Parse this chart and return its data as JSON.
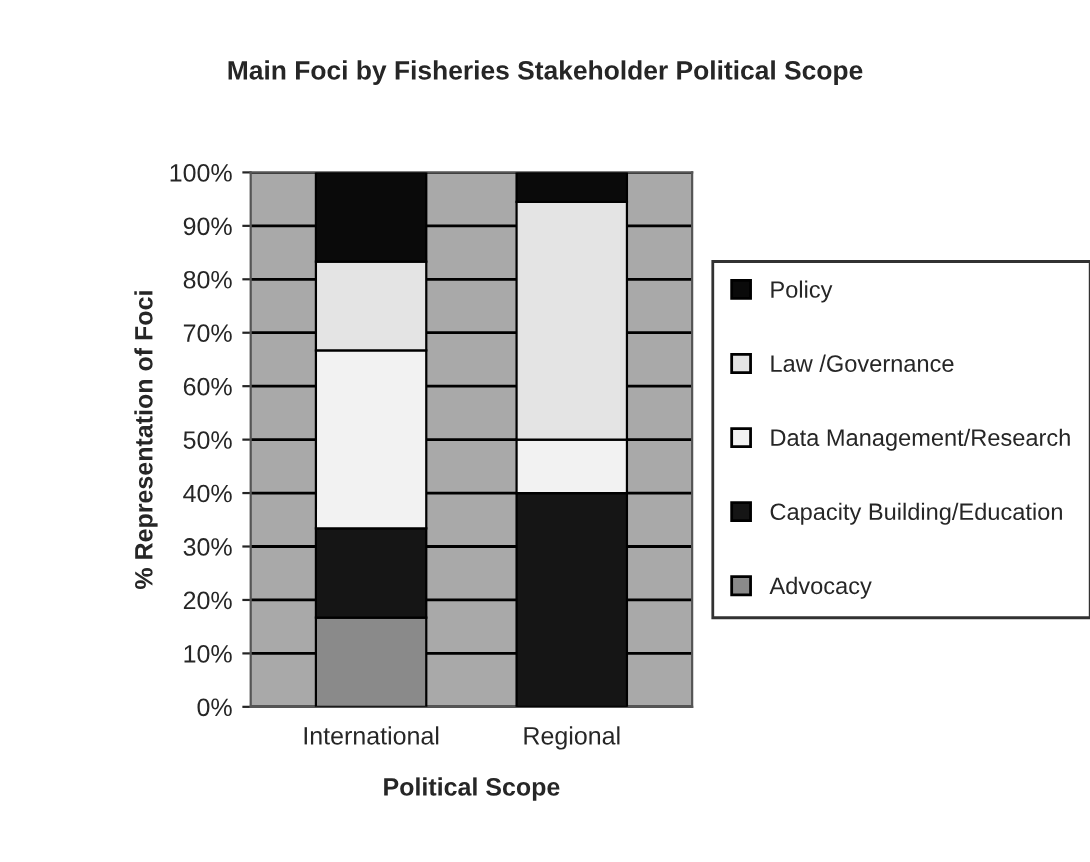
{
  "chart_data": {
    "type": "bar",
    "stacked": true,
    "title": "Main Foci by Fisheries Stakeholder Political Scope",
    "xlabel": "Political Scope",
    "ylabel": "% Representation of Foci",
    "categories": [
      "International",
      "Regional"
    ],
    "series": [
      {
        "name": "Advocacy",
        "color": "#8a8a8a",
        "values": [
          16.7,
          0
        ]
      },
      {
        "name": "Capacity Building/Education",
        "color": "#151515",
        "values": [
          16.7,
          40
        ]
      },
      {
        "name": "Data Management/Research",
        "color": "#f2f2f2",
        "values": [
          33.3,
          10
        ]
      },
      {
        "name": "Law /Governance",
        "color": "#e4e4e4",
        "values": [
          16.6,
          44.5
        ]
      },
      {
        "name": "Policy",
        "color": "#0a0a0a",
        "values": [
          16.7,
          5.5
        ]
      }
    ],
    "ylim": [
      0,
      100
    ],
    "yticks": [
      {
        "value": 0,
        "label": "0%"
      },
      {
        "value": 10,
        "label": "10%"
      },
      {
        "value": 20,
        "label": "20%"
      },
      {
        "value": 30,
        "label": "30%"
      },
      {
        "value": 40,
        "label": "40%"
      },
      {
        "value": 50,
        "label": "50%"
      },
      {
        "value": 60,
        "label": "60%"
      },
      {
        "value": 70,
        "label": "70%"
      },
      {
        "value": 80,
        "label": "80%"
      },
      {
        "value": 90,
        "label": "90%"
      },
      {
        "value": 100,
        "label": "100%"
      }
    ],
    "grid": "y",
    "legend": "right"
  }
}
